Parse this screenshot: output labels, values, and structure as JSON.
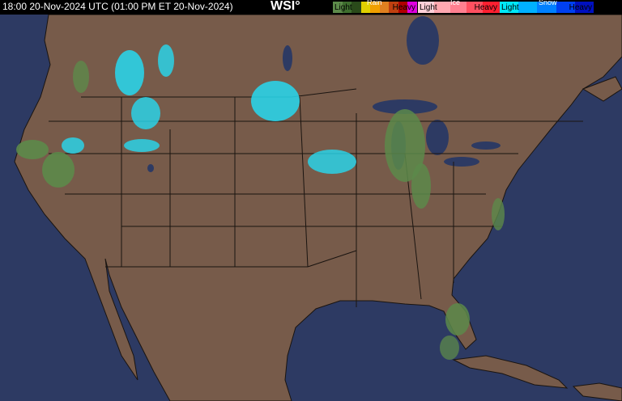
{
  "header": {
    "timestamp": "18:00 20-Nov-2024 UTC  (01:00 PM ET 20-Nov-2024)",
    "logo": "WSI°"
  },
  "legend": {
    "rain": {
      "title": "Rain",
      "light": "Light",
      "heavy": "Heavy",
      "colors": [
        "#5c8a4a",
        "#3e6e2e",
        "#2a4a1a",
        "#e0d000",
        "#f0a000",
        "#e08020",
        "#c04010",
        "#b00000",
        "#e000e0"
      ]
    },
    "ice": {
      "title": "Ice",
      "light": "Light",
      "heavy": "Heavy",
      "colors": [
        "#ffd0d8",
        "#ffa8b0",
        "#ff8090",
        "#ff5060",
        "#ff2030"
      ]
    },
    "snow": {
      "title": "Snow",
      "light": "Light",
      "heavy": "Heavy",
      "colors": [
        "#00e8f8",
        "#00b0ff",
        "#0080ff",
        "#0040f0",
        "#0010c0"
      ]
    }
  },
  "map": {
    "land_color": "#775b4a",
    "water_color": "#2d3a63",
    "border_color": "#1a1410"
  }
}
